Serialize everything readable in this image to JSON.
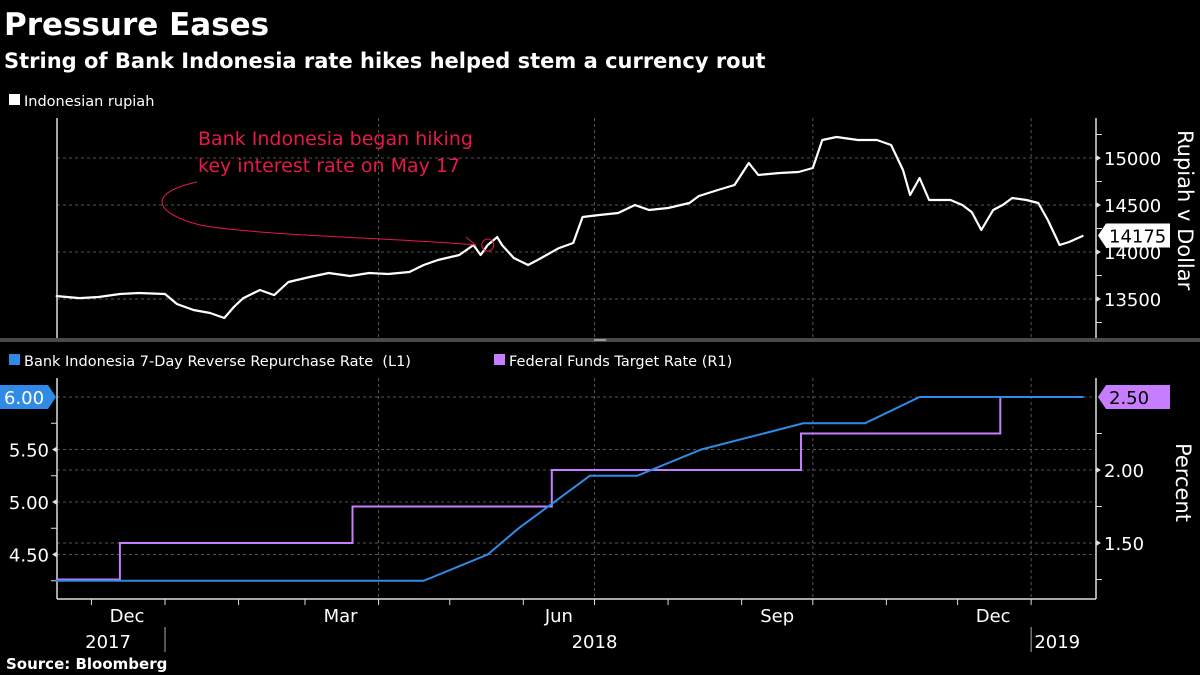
{
  "header": {
    "title": "Pressure Eases",
    "subtitle": "String of Bank Indonesia rate hikes helped stem a currency rout"
  },
  "footer": {
    "source": "Source: Bloomberg"
  },
  "colors": {
    "background": "#000000",
    "rupiah": "#ffffff",
    "bank_indonesia": "#2f8be6",
    "fed_funds": "#c77dff",
    "annotation": "#e8194a"
  },
  "chart_data": [
    {
      "type": "line",
      "legend": [
        "Indonesian rupiah"
      ],
      "legend_placement": "top-left",
      "ylabel": "Rupiah v Dollar",
      "y_axis_side": "right",
      "ylim": [
        13100,
        15420
      ],
      "yticks": [
        "15000",
        "14500",
        "14000",
        "13500"
      ],
      "grid": true,
      "last_value_label": "14175",
      "annotation": {
        "text_line1": "Bank Indonesia began hiking",
        "text_line2": "key interest rate on May 17",
        "date": "2018-05-17"
      },
      "series": [
        {
          "name": "Indonesian rupiah",
          "x": [
            "2017-11-16",
            "2017-11-26",
            "2017-12-04",
            "2017-12-13",
            "2017-12-21",
            "2018-01-01",
            "2018-01-06",
            "2018-01-13",
            "2018-01-20",
            "2018-01-26",
            "2018-01-30",
            "2018-02-03",
            "2018-02-10",
            "2018-02-16",
            "2018-02-22",
            "2018-03-03",
            "2018-03-11",
            "2018-03-20",
            "2018-03-28",
            "2018-04-05",
            "2018-04-14",
            "2018-04-20",
            "2018-04-26",
            "2018-05-05",
            "2018-05-11",
            "2018-05-14",
            "2018-05-17",
            "2018-05-21",
            "2018-05-23",
            "2018-05-28",
            "2018-06-03",
            "2018-06-07",
            "2018-06-16",
            "2018-06-22",
            "2018-06-26",
            "2018-07-03",
            "2018-07-11",
            "2018-07-18",
            "2018-07-24",
            "2018-08-01",
            "2018-08-10",
            "2018-08-14",
            "2018-08-22",
            "2018-08-29",
            "2018-09-04",
            "2018-09-08",
            "2018-09-17",
            "2018-09-25",
            "2018-10-01",
            "2018-10-05",
            "2018-10-11",
            "2018-10-20",
            "2018-10-28",
            "2018-11-03",
            "2018-11-08",
            "2018-11-11",
            "2018-11-15",
            "2018-11-19",
            "2018-11-28",
            "2018-12-03",
            "2018-12-07",
            "2018-12-11",
            "2018-12-16",
            "2018-12-20",
            "2018-12-24",
            "2018-12-30",
            "2019-01-04",
            "2019-01-08",
            "2019-01-13",
            "2019-01-17",
            "2019-01-23"
          ],
          "values": [
            13532,
            13510,
            13521,
            13553,
            13564,
            13553,
            13447,
            13383,
            13351,
            13298,
            13415,
            13510,
            13596,
            13542,
            13681,
            13734,
            13777,
            13745,
            13777,
            13766,
            13787,
            13862,
            13915,
            13968,
            14074,
            13968,
            14074,
            14159,
            14074,
            13936,
            13862,
            13915,
            14042,
            14096,
            14372,
            14394,
            14415,
            14500,
            14447,
            14468,
            14521,
            14596,
            14660,
            14713,
            14947,
            14819,
            14840,
            14851,
            14894,
            15191,
            15223,
            15191,
            15191,
            15138,
            14872,
            14606,
            14787,
            14553,
            14553,
            14500,
            14425,
            14234,
            14447,
            14500,
            14574,
            14553,
            14521,
            14340,
            14074,
            14106,
            14175
          ]
        }
      ]
    },
    {
      "type": "line",
      "legend": [
        "Bank Indonesia 7-Day Reverse Repurchase Rate  (L1)",
        "Federal Funds Target Rate (R1)"
      ],
      "legend_placement": "top-left",
      "ylabel_right": "Percent",
      "ylim_left": [
        4.08,
        6.18
      ],
      "ylim_right": [
        1.12,
        2.63
      ],
      "yticks_left": [
        "6.00",
        "5.50",
        "5.00",
        "4.50"
      ],
      "yticks_right": [
        "2.50",
        "2.00",
        "1.50"
      ],
      "grid": true,
      "last_value_left": "6.00",
      "last_value_right": "2.50",
      "x_month_labels": [
        "Dec",
        "Mar",
        "Jun",
        "Sep",
        "Dec"
      ],
      "x_year_labels": [
        "2017",
        "2018",
        "2019"
      ],
      "series": [
        {
          "name": "Bank Indonesia 7-Day Reverse Repurchase Rate",
          "axis": "left",
          "x": [
            "2017-11-16",
            "2018-04-20",
            "2018-05-17",
            "2018-05-30",
            "2018-06-29",
            "2018-07-19",
            "2018-08-15",
            "2018-09-27",
            "2018-10-23",
            "2018-11-15",
            "2019-01-23"
          ],
          "values": [
            4.25,
            4.25,
            4.5,
            4.75,
            5.25,
            5.25,
            5.5,
            5.75,
            5.75,
            6.0,
            6.0
          ]
        },
        {
          "name": "Federal Funds Target Rate",
          "axis": "right",
          "step": true,
          "x": [
            "2017-11-16",
            "2017-12-13",
            "2018-03-21",
            "2018-06-13",
            "2018-09-26",
            "2018-12-19",
            "2019-01-23"
          ],
          "values": [
            1.25,
            1.5,
            1.75,
            2.0,
            2.25,
            2.5,
            2.5
          ]
        }
      ]
    }
  ]
}
